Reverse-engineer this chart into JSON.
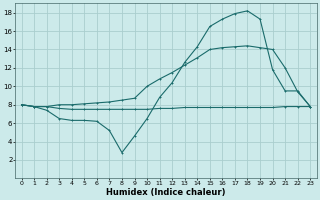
{
  "xlabel": "Humidex (Indice chaleur)",
  "bg_color": "#cceaea",
  "grid_color": "#aacece",
  "line_color": "#1a6b6b",
  "xlim": [
    -0.5,
    23.5
  ],
  "ylim": [
    0,
    19
  ],
  "xticks": [
    0,
    1,
    2,
    3,
    4,
    5,
    6,
    7,
    8,
    9,
    10,
    11,
    12,
    13,
    14,
    15,
    16,
    17,
    18,
    19,
    20,
    21,
    22,
    23
  ],
  "yticks": [
    2,
    4,
    6,
    8,
    10,
    12,
    14,
    16,
    18
  ],
  "line_bottom_x": [
    0,
    1,
    2,
    3,
    4,
    5,
    6,
    7,
    8,
    9,
    10,
    11,
    12,
    13,
    14,
    15,
    16,
    17,
    18,
    19,
    20,
    21,
    22,
    23
  ],
  "line_bottom_y": [
    8.0,
    7.8,
    7.8,
    7.6,
    7.5,
    7.5,
    7.5,
    7.5,
    7.5,
    7.5,
    7.5,
    7.6,
    7.6,
    7.7,
    7.7,
    7.7,
    7.7,
    7.7,
    7.7,
    7.7,
    7.7,
    7.8,
    7.8,
    7.8
  ],
  "line_mid_x": [
    0,
    1,
    2,
    3,
    4,
    5,
    6,
    7,
    8,
    9,
    10,
    11,
    12,
    13,
    14,
    15,
    16,
    17,
    18,
    19,
    20,
    21,
    22,
    23
  ],
  "line_mid_y": [
    8.0,
    7.8,
    7.4,
    6.5,
    6.3,
    6.3,
    6.2,
    5.2,
    2.8,
    4.6,
    6.5,
    8.8,
    10.4,
    12.6,
    14.3,
    16.5,
    17.3,
    17.9,
    18.2,
    17.3,
    11.8,
    9.5,
    9.5,
    7.8
  ],
  "line_top_x": [
    0,
    1,
    2,
    3,
    4,
    5,
    6,
    7,
    8,
    9,
    10,
    11,
    12,
    13,
    14,
    15,
    16,
    17,
    18,
    19,
    20,
    21,
    22,
    23
  ],
  "line_top_y": [
    8.0,
    7.8,
    7.8,
    8.0,
    8.0,
    8.1,
    8.2,
    8.3,
    8.5,
    8.7,
    10.0,
    10.8,
    11.5,
    12.3,
    13.1,
    14.0,
    14.2,
    14.3,
    14.4,
    14.2,
    14.0,
    12.0,
    9.4,
    7.8
  ]
}
